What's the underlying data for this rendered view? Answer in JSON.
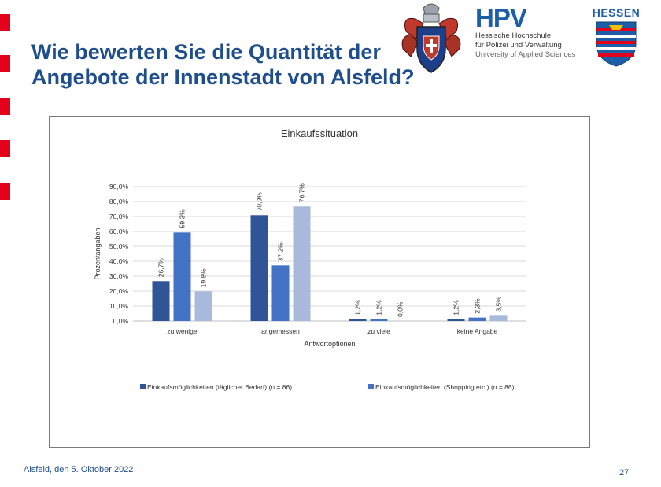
{
  "slide": {
    "title_line1": "Wie bewerten Sie die Quantität der",
    "title_line2": "Angebote der Innenstadt von Alsfeld?",
    "footer_left": "Alsfeld, den 5. Oktober 2022",
    "page_number": "27"
  },
  "logos": {
    "hpv_mark": "HPV",
    "hpv_line1": "Hessische Hochschule",
    "hpv_line2": "für Polizei und Verwaltung",
    "hpv_line3": "University of Applied Sciences",
    "hessen_text": "HESSEN",
    "accent_red": "#e2001a",
    "accent_blue": "#1c5fa8"
  },
  "chart_data": {
    "type": "bar",
    "title": "Einkaufssituation",
    "xlabel": "Antwortoptionen",
    "ylabel": "Prozentangaben",
    "categories": [
      "zu wenige",
      "angemessen",
      "zu viele",
      "keine Angabe"
    ],
    "ylim": [
      0,
      90
    ],
    "yticks": [
      "0,0%",
      "10,0%",
      "20,0%",
      "30,0%",
      "40,0%",
      "50,0%",
      "60,0%",
      "70,0%",
      "80,0%",
      "90,0%"
    ],
    "grid": true,
    "legend_position": "bottom",
    "series": [
      {
        "name": "Einkaufsmöglichkeiten (täglicher Bedarf) (n = 86)",
        "values": [
          26.7,
          70.9,
          1.2,
          1.2
        ],
        "labels": [
          "26,7%",
          "70,9%",
          "1,2%",
          "1,2%"
        ],
        "color": "#2f5597"
      },
      {
        "name": "Einkaufsmöglichkeiten (Shopping etc.) (n = 86)",
        "values": [
          59.3,
          37.2,
          1.2,
          2.3
        ],
        "labels": [
          "59,3%",
          "37,2%",
          "1,2%",
          "2,3%"
        ],
        "color": "#4472c4"
      },
      {
        "name": "",
        "values": [
          19.8,
          76.7,
          0.0,
          3.5
        ],
        "labels": [
          "19,8%",
          "76,7%",
          "0,0%",
          "3,5%"
        ],
        "color": "#a9b9dc"
      }
    ]
  }
}
